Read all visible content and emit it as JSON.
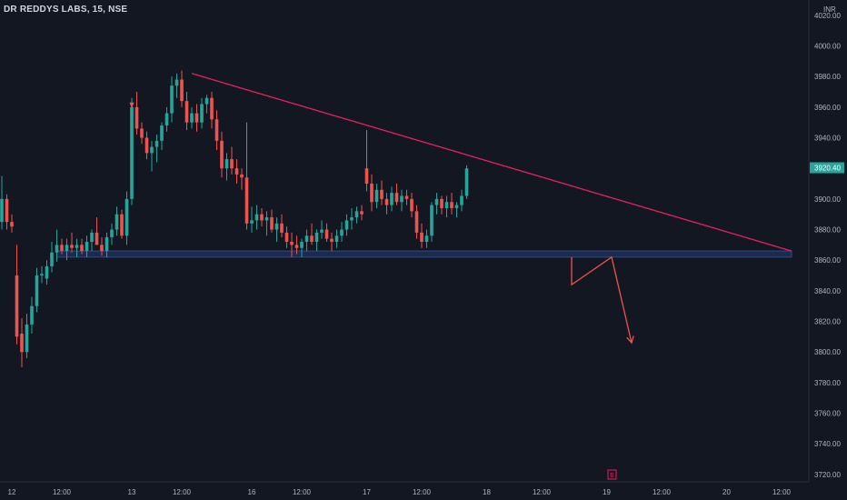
{
  "header": {
    "title": "DR REDDYS LABS, 15, NSE",
    "currency": "INR"
  },
  "colors": {
    "background": "#131722",
    "up": "#26a69a",
    "down": "#ef5350",
    "trendline": "#e91e63",
    "zone_fill": "#1e2a4a",
    "zone_border": "#2d4a8a",
    "arrow": "#ef5350",
    "axis_text": "#b2b5be",
    "last_price_bg": "#26a69a"
  },
  "chart_data": {
    "type": "candlestick",
    "ylim": [
      3714,
      4030
    ],
    "y_ticks": [
      "4020.00",
      "4000.00",
      "3980.00",
      "3960.00",
      "3940.00",
      "3920.00",
      "3900.00",
      "3880.00",
      "3860.00",
      "3840.00",
      "3820.00",
      "3800.00",
      "3780.00",
      "3760.00",
      "3740.00",
      "3720.00"
    ],
    "x_ticks": [
      {
        "label": "12",
        "index": 2
      },
      {
        "label": "12:00",
        "index": 12
      },
      {
        "label": "13",
        "index": 26
      },
      {
        "label": "12:00",
        "index": 36
      },
      {
        "label": "16",
        "index": 50
      },
      {
        "label": "12:00",
        "index": 60
      },
      {
        "label": "17",
        "index": 73
      },
      {
        "label": "12:00",
        "index": 84
      },
      {
        "label": "18",
        "index": 97
      },
      {
        "label": "12:00",
        "index": 108
      },
      {
        "label": "19",
        "index": 121
      },
      {
        "label": "12:00",
        "index": 132
      },
      {
        "label": "20",
        "index": 145
      },
      {
        "label": "12:00",
        "index": 156
      }
    ],
    "last_price": "3920.40",
    "earnings_marker": {
      "label": "E",
      "index": 122
    },
    "candles": [
      [
        3885,
        3915,
        3880,
        3900
      ],
      [
        3900,
        3903,
        3880,
        3885
      ],
      [
        3885,
        3890,
        3878,
        3882
      ],
      [
        3850,
        3870,
        3805,
        3810
      ],
      [
        3812,
        3822,
        3790,
        3800
      ],
      [
        3800,
        3825,
        3796,
        3818
      ],
      [
        3818,
        3836,
        3812,
        3830
      ],
      [
        3830,
        3855,
        3826,
        3850
      ],
      [
        3850,
        3856,
        3845,
        3851
      ],
      [
        3848,
        3860,
        3844,
        3856
      ],
      [
        3856,
        3872,
        3852,
        3865
      ],
      [
        3865,
        3880,
        3859,
        3870
      ],
      [
        3870,
        3874,
        3864,
        3866
      ],
      [
        3866,
        3874,
        3860,
        3870
      ],
      [
        3870,
        3878,
        3865,
        3868
      ],
      [
        3868,
        3874,
        3862,
        3870
      ],
      [
        3870,
        3874,
        3864,
        3866
      ],
      [
        3866,
        3876,
        3862,
        3872
      ],
      [
        3872,
        3880,
        3866,
        3878
      ],
      [
        3878,
        3888,
        3870,
        3870
      ],
      [
        3870,
        3875,
        3863,
        3866
      ],
      [
        3866,
        3878,
        3862,
        3875
      ],
      [
        3875,
        3884,
        3870,
        3880
      ],
      [
        3880,
        3895,
        3876,
        3890
      ],
      [
        3890,
        3893,
        3874,
        3876
      ],
      [
        3876,
        3905,
        3870,
        3900
      ],
      [
        3900,
        3966,
        3896,
        3960
      ],
      [
        3960,
        3970,
        3942,
        3946
      ],
      [
        3946,
        3950,
        3936,
        3940
      ],
      [
        3940,
        3944,
        3926,
        3930
      ],
      [
        3930,
        3938,
        3918,
        3934
      ],
      [
        3934,
        3942,
        3924,
        3938
      ],
      [
        3938,
        3950,
        3932,
        3948
      ],
      [
        3948,
        3960,
        3944,
        3956
      ],
      [
        3956,
        3980,
        3950,
        3974
      ],
      [
        3974,
        3982,
        3966,
        3978
      ],
      [
        3978,
        3984,
        3960,
        3964
      ],
      [
        3964,
        3970,
        3945,
        3950
      ],
      [
        3950,
        3960,
        3946,
        3956
      ],
      [
        3956,
        3962,
        3944,
        3950
      ],
      [
        3950,
        3966,
        3946,
        3962
      ],
      [
        3962,
        3968,
        3956,
        3966
      ],
      [
        3966,
        3970,
        3946,
        3952
      ],
      [
        3952,
        3958,
        3932,
        3938
      ],
      [
        3938,
        3944,
        3914,
        3920
      ],
      [
        3920,
        3930,
        3912,
        3926
      ],
      [
        3926,
        3934,
        3916,
        3920
      ],
      [
        3920,
        3926,
        3910,
        3916
      ],
      [
        3916,
        3920,
        3906,
        3914
      ],
      [
        3914,
        3950,
        3880,
        3884
      ],
      [
        3884,
        3895,
        3878,
        3886
      ],
      [
        3886,
        3896,
        3880,
        3890
      ],
      [
        3890,
        3894,
        3882,
        3886
      ],
      [
        3886,
        3892,
        3876,
        3888
      ],
      [
        3888,
        3893,
        3878,
        3880
      ],
      [
        3880,
        3888,
        3872,
        3884
      ],
      [
        3884,
        3890,
        3875,
        3878
      ],
      [
        3878,
        3882,
        3868,
        3872
      ],
      [
        3872,
        3878,
        3862,
        3870
      ],
      [
        3870,
        3876,
        3864,
        3868
      ],
      [
        3868,
        3874,
        3862,
        3872
      ],
      [
        3872,
        3880,
        3866,
        3876
      ],
      [
        3876,
        3884,
        3870,
        3872
      ],
      [
        3872,
        3880,
        3866,
        3878
      ],
      [
        3878,
        3886,
        3874,
        3880
      ],
      [
        3880,
        3884,
        3872,
        3874
      ],
      [
        3874,
        3878,
        3866,
        3872
      ],
      [
        3872,
        3880,
        3868,
        3876
      ],
      [
        3876,
        3885,
        3872,
        3880
      ],
      [
        3880,
        3890,
        3876,
        3886
      ],
      [
        3886,
        3894,
        3880,
        3888
      ],
      [
        3888,
        3895,
        3884,
        3892
      ],
      [
        3892,
        3896,
        3886,
        3890
      ],
      [
        3920,
        3945,
        3905,
        3910
      ],
      [
        3910,
        3916,
        3892,
        3898
      ],
      [
        3898,
        3910,
        3894,
        3906
      ],
      [
        3906,
        3912,
        3896,
        3900
      ],
      [
        3900,
        3904,
        3890,
        3896
      ],
      [
        3896,
        3908,
        3892,
        3904
      ],
      [
        3904,
        3910,
        3896,
        3898
      ],
      [
        3898,
        3906,
        3892,
        3902
      ],
      [
        3902,
        3906,
        3896,
        3900
      ],
      [
        3900,
        3904,
        3888,
        3892
      ],
      [
        3892,
        3896,
        3874,
        3878
      ],
      [
        3878,
        3884,
        3868,
        3872
      ],
      [
        3872,
        3880,
        3868,
        3876
      ],
      [
        3876,
        3898,
        3872,
        3896
      ],
      [
        3896,
        3904,
        3890,
        3900
      ],
      [
        3900,
        3902,
        3890,
        3894
      ],
      [
        3894,
        3902,
        3888,
        3898
      ],
      [
        3898,
        3904,
        3890,
        3894
      ],
      [
        3894,
        3898,
        3888,
        3896
      ],
      [
        3896,
        3906,
        3892,
        3902
      ],
      [
        3902,
        3922,
        3900,
        3920
      ]
    ],
    "trendline": {
      "start": {
        "index": 38,
        "value": 3982
      },
      "end": {
        "index": 158,
        "value": 3866
      }
    },
    "support_zone": {
      "start_index": 11,
      "end_index": 158,
      "top": 3866,
      "bottom": 3862
    },
    "projection": [
      {
        "index": 114,
        "value": 3862
      },
      {
        "index": 114,
        "value": 3844
      },
      {
        "index": 122,
        "value": 3862
      },
      {
        "index": 126,
        "value": 3806
      }
    ]
  }
}
